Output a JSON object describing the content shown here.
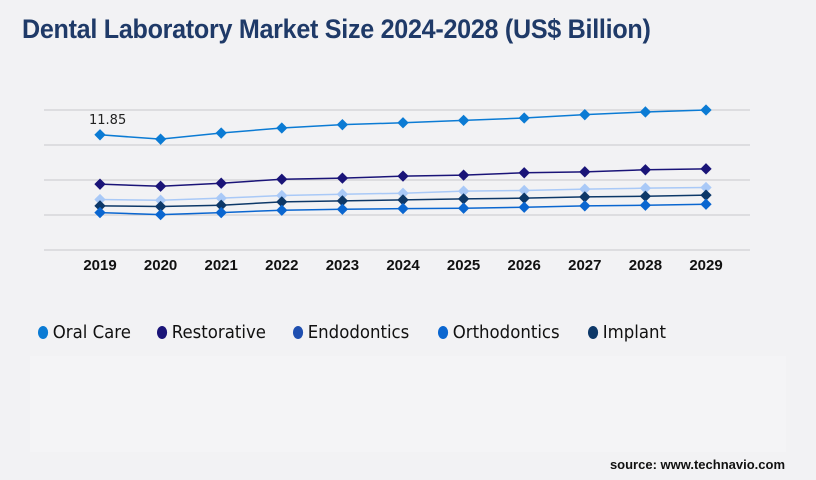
{
  "chart_data": {
    "type": "line",
    "title": "Dental Laboratory Market Size 2024-2028 (US$ Billion)",
    "xlabel": "",
    "ylabel": "",
    "x": [
      "2019",
      "2020",
      "2021",
      "2022",
      "2023",
      "2024",
      "2025",
      "2026",
      "2027",
      "2028",
      "2029"
    ],
    "ylim": [
      0,
      14.4
    ],
    "grid": true,
    "legend_position": "bottom-left",
    "annotations": [
      {
        "series": "Oral Care",
        "x": "2019",
        "label": "11.85"
      }
    ],
    "series": [
      {
        "name": "Oral Care",
        "color": "#0b7bd4",
        "line_color": "#0b7bd4",
        "values": [
          11.85,
          11.4,
          12.03,
          12.55,
          12.89,
          13.09,
          13.33,
          13.58,
          13.92,
          14.2,
          14.4
        ]
      },
      {
        "name": "Restorative",
        "color": "#1a1478",
        "line_color": "#1a1478",
        "values": [
          6.77,
          6.56,
          6.87,
          7.28,
          7.39,
          7.6,
          7.7,
          7.94,
          8.04,
          8.25,
          8.35
        ]
      },
      {
        "name": "Endodontics",
        "color": "#1f4fb0",
        "line_color": "#a9c9f7",
        "values": [
          5.19,
          5.12,
          5.33,
          5.6,
          5.74,
          5.84,
          6.05,
          6.12,
          6.26,
          6.36,
          6.43
        ]
      },
      {
        "name": "Orthodontics",
        "color": "#0a66d0",
        "line_color": "#0a66d0",
        "values": [
          3.85,
          3.64,
          3.85,
          4.09,
          4.19,
          4.26,
          4.3,
          4.4,
          4.54,
          4.6,
          4.71
        ]
      },
      {
        "name": "Implant",
        "color": "#0d3868",
        "line_color": "#0d3868",
        "values": [
          4.54,
          4.47,
          4.6,
          4.95,
          5.05,
          5.15,
          5.26,
          5.33,
          5.46,
          5.53,
          5.64
        ]
      }
    ]
  },
  "source": "source: www.technavio.com"
}
